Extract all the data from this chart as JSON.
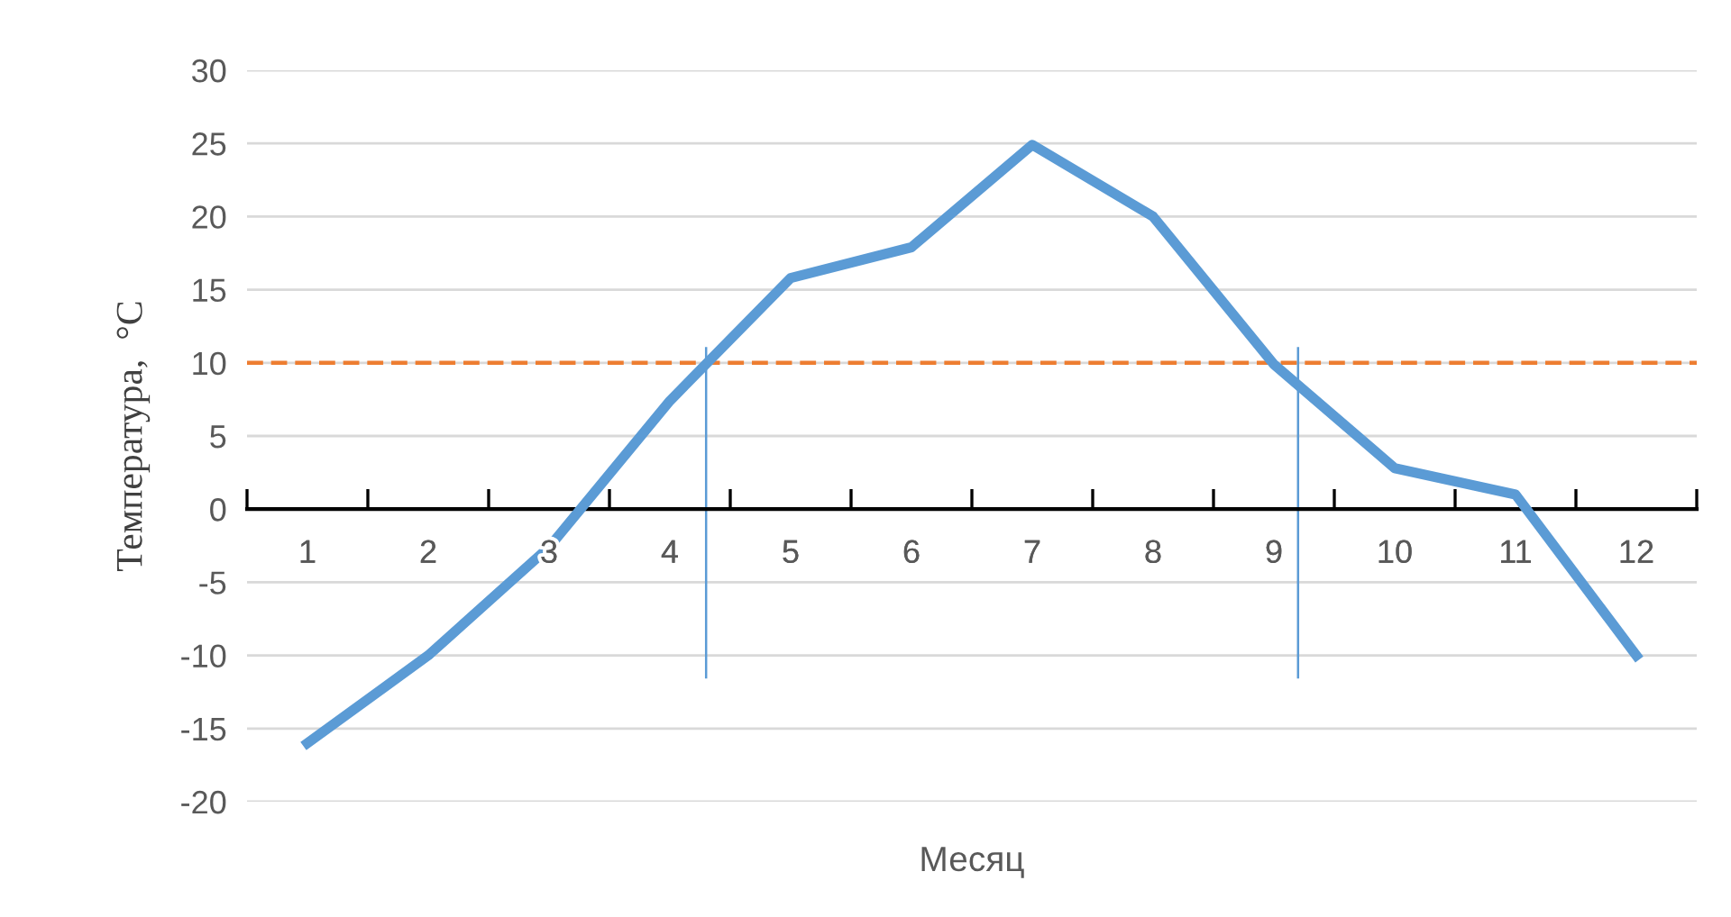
{
  "chart_data": {
    "type": "line",
    "xlabel": "Месяц",
    "ylabel": "Температура,  °C",
    "x": [
      1,
      2,
      3,
      4,
      5,
      6,
      7,
      8,
      9,
      10,
      11,
      12
    ],
    "series": [
      {
        "color": "#5b9bd5",
        "values": [
          -16,
          -10,
          -2.6,
          7.4,
          15.8,
          17.9,
          24.9,
          20,
          9.9,
          2.8,
          1,
          -10
        ]
      }
    ],
    "xlim": [
      0.5,
      12.5
    ],
    "xticks": [
      1,
      2,
      3,
      4,
      5,
      6,
      7,
      8,
      9,
      10,
      11,
      12,
      {
        "value": 0.5,
        "label": null
      },
      {
        "value": 1.5,
        "label": null
      },
      {
        "value": 2.5,
        "label": null
      },
      {
        "value": 3.5,
        "label": null
      },
      {
        "value": 4.5,
        "label": null
      },
      {
        "value": 5.5,
        "label": null
      },
      {
        "value": 6.5,
        "label": null
      },
      {
        "value": 7.5,
        "label": null
      },
      {
        "value": 8.5,
        "label": null
      },
      {
        "value": 9.5,
        "label": null
      },
      {
        "value": 10.5,
        "label": null
      },
      {
        "value": 11.5,
        "label": null
      },
      {
        "value": 12.5,
        "label": null
      }
    ],
    "ylim": [
      -20,
      30
    ],
    "yticks": [
      -20,
      -15,
      -10,
      -5,
      0,
      5,
      10,
      15,
      20,
      25,
      30
    ],
    "grid": "y",
    "legend": false,
    "marker": "none",
    "line_style": "solid",
    "ref_lines": [
      {
        "axis": "y",
        "value": 10,
        "color": "#ed7d31",
        "line_style": "dashed"
      },
      {
        "axis": "x",
        "value": 4.3,
        "color": "#5b9bd5",
        "line_style": "solid"
      },
      {
        "axis": "x",
        "value": 9.2,
        "color": "#5b9bd5",
        "line_style": "solid"
      }
    ]
  }
}
